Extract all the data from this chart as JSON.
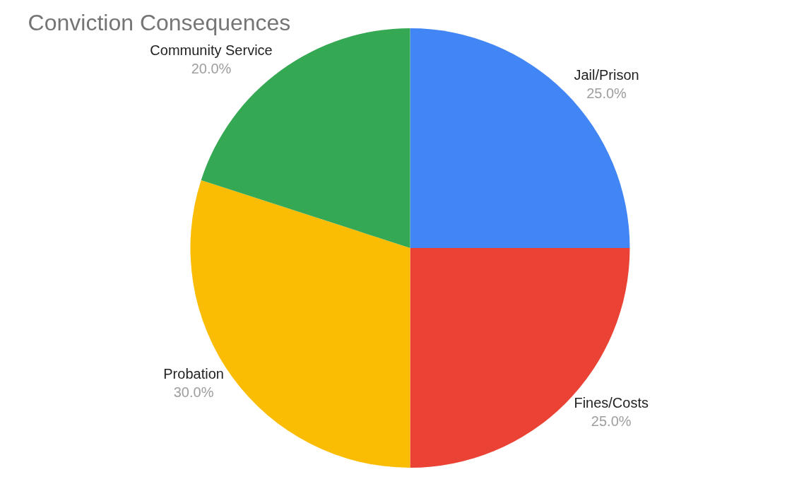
{
  "chart_data": {
    "type": "pie",
    "title": "Conviction Consequences",
    "categories": [
      "Jail/Prison",
      "Fines/Costs",
      "Probation",
      "Community Service"
    ],
    "values": [
      25,
      25,
      30,
      20
    ],
    "value_labels": [
      "25.0%",
      "25.0%",
      "30.0%",
      "20.0%"
    ],
    "colors": [
      "#4285f4",
      "#ea4335",
      "#fbbc04",
      "#34a853"
    ],
    "legend": false
  }
}
